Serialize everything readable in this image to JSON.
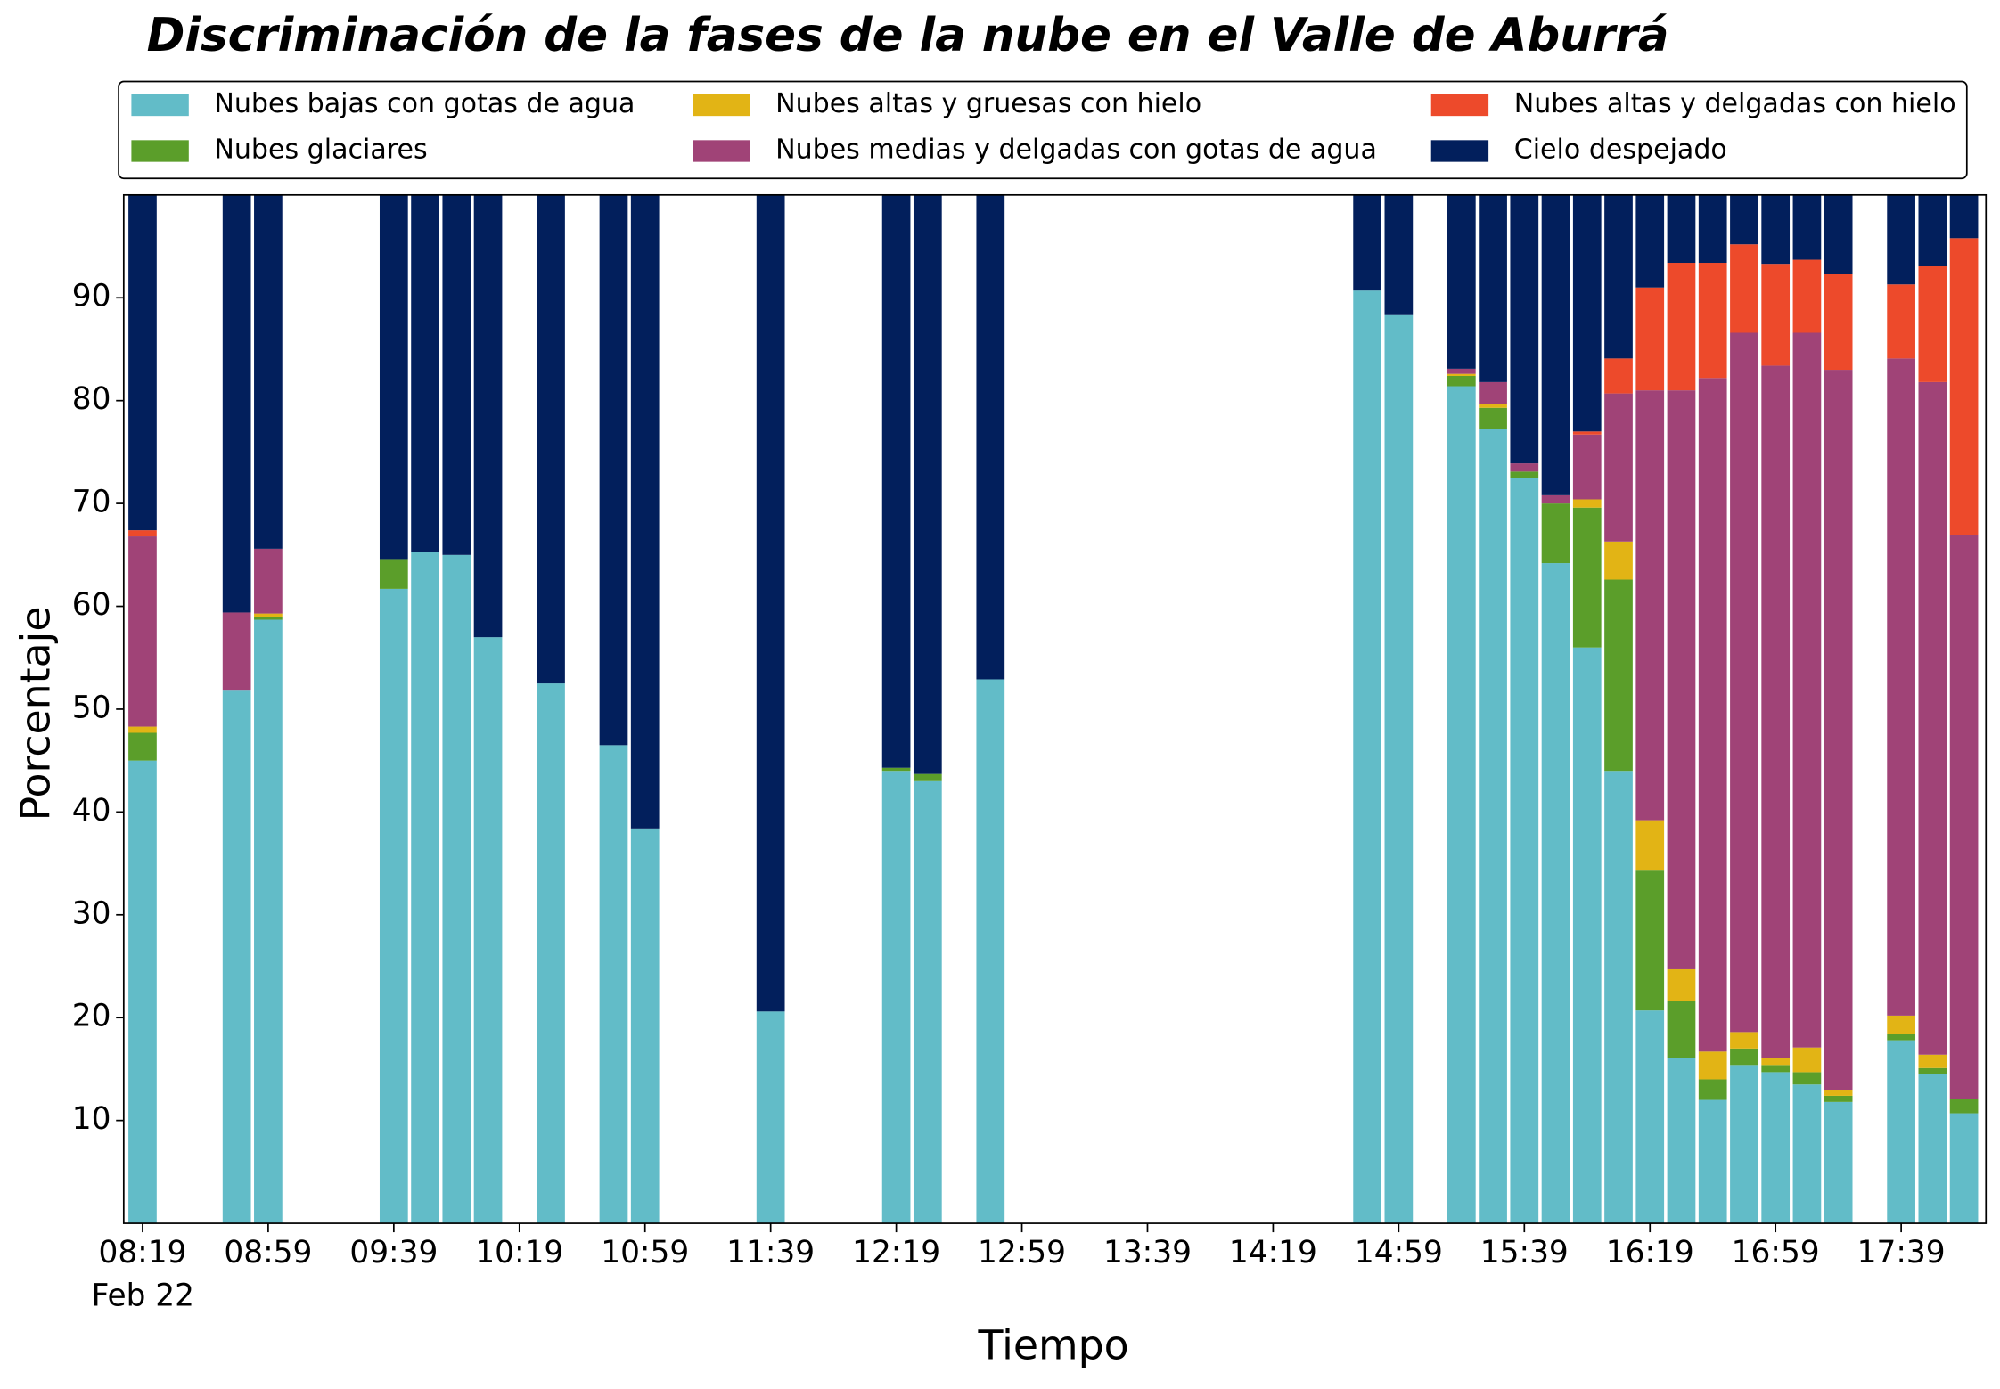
{
  "chart_data": {
    "type": "stacked_bar",
    "title": "Discriminación de la fases de la nube en el Valle de Aburrá",
    "xlabel": "Tiempo",
    "ylabel": "Porcentaje",
    "date_label": "Feb 22",
    "x": [
      "08:19",
      "08:49",
      "08:59",
      "09:39",
      "09:49",
      "09:59",
      "10:09",
      "10:29",
      "10:49",
      "10:59",
      "11:39",
      "12:19",
      "12:29",
      "12:49",
      "14:49",
      "14:59",
      "15:19",
      "15:29",
      "15:39",
      "15:49",
      "15:59",
      "16:09",
      "16:19",
      "16:29",
      "16:39",
      "16:49",
      "16:59",
      "17:09",
      "17:19",
      "17:39",
      "17:49",
      "17:59"
    ],
    "xlim": [
      "08:13",
      "18:06"
    ],
    "xticks": [
      "08:19",
      "08:59",
      "09:39",
      "10:19",
      "10:59",
      "11:39",
      "12:19",
      "12:59",
      "13:39",
      "14:19",
      "14:59",
      "15:39",
      "16:19",
      "16:59",
      "17:39"
    ],
    "ylim": [
      0,
      100
    ],
    "yticks": [
      10,
      20,
      30,
      40,
      50,
      60,
      70,
      80,
      90
    ],
    "legend": "top",
    "series": [
      {
        "name": "Nubes bajas con gotas de agua",
        "color": "#62bcc8",
        "values": [
          45.0,
          51.8,
          58.7,
          61.7,
          65.3,
          65.0,
          57.0,
          52.5,
          46.5,
          38.4,
          20.6,
          44.0,
          43.0,
          52.9,
          90.7,
          88.4,
          81.4,
          77.2,
          72.5,
          64.2,
          56.0,
          44.0,
          20.7,
          16.1,
          12.0,
          15.4,
          14.7,
          13.5,
          11.8,
          17.8,
          14.5,
          10.7
        ]
      },
      {
        "name": "Nubes glaciares",
        "color": "#5b9e2a",
        "values": [
          2.7,
          0,
          0.3,
          2.9,
          0,
          0,
          0,
          0,
          0,
          0,
          0,
          0.3,
          0.7,
          0,
          0,
          0,
          1.0,
          2.1,
          0.6,
          5.8,
          13.6,
          18.6,
          13.6,
          5.5,
          2.0,
          1.6,
          0.7,
          1.2,
          0.6,
          0.6,
          0.6,
          1.4
        ]
      },
      {
        "name": "Nubes altas y gruesas con hielo",
        "color": "#e2b415",
        "values": [
          0.6,
          0,
          0.3,
          0,
          0,
          0,
          0,
          0,
          0,
          0,
          0,
          0,
          0,
          0,
          0,
          0,
          0.2,
          0.4,
          0,
          0,
          0.8,
          3.7,
          4.9,
          3.1,
          2.7,
          1.6,
          0.7,
          2.4,
          0.6,
          1.8,
          1.3,
          0
        ]
      },
      {
        "name": "Nubes medias y delgadas con gotas de agua",
        "color": "#a04377",
        "values": [
          18.5,
          7.6,
          6.3,
          0,
          0,
          0,
          0,
          0,
          0,
          0,
          0,
          0,
          0,
          0,
          0,
          0,
          0.5,
          2.1,
          0.8,
          0.8,
          6.3,
          14.4,
          41.8,
          56.3,
          65.5,
          68.0,
          67.3,
          69.5,
          70.0,
          63.9,
          65.4,
          54.8
        ]
      },
      {
        "name": "Nubes altas y delgadas con hielo",
        "color": "#ed4a2b",
        "values": [
          0.6,
          0,
          0,
          0,
          0,
          0,
          0,
          0,
          0,
          0,
          0,
          0,
          0,
          0,
          0,
          0,
          0,
          0,
          0,
          0,
          0.3,
          3.4,
          10.0,
          12.4,
          11.2,
          8.6,
          9.9,
          7.1,
          9.3,
          7.2,
          11.3,
          28.9
        ]
      },
      {
        "name": "Cielo despejado",
        "color": "#021f5c",
        "values": [
          32.6,
          40.6,
          34.4,
          35.4,
          34.7,
          35.0,
          43.0,
          47.5,
          53.5,
          61.6,
          79.4,
          55.7,
          56.3,
          47.1,
          9.3,
          11.6,
          16.9,
          18.2,
          26.1,
          29.2,
          23.0,
          15.9,
          9.0,
          6.6,
          6.6,
          4.8,
          6.7,
          6.3,
          7.7,
          8.7,
          6.9,
          4.2
        ]
      }
    ]
  }
}
